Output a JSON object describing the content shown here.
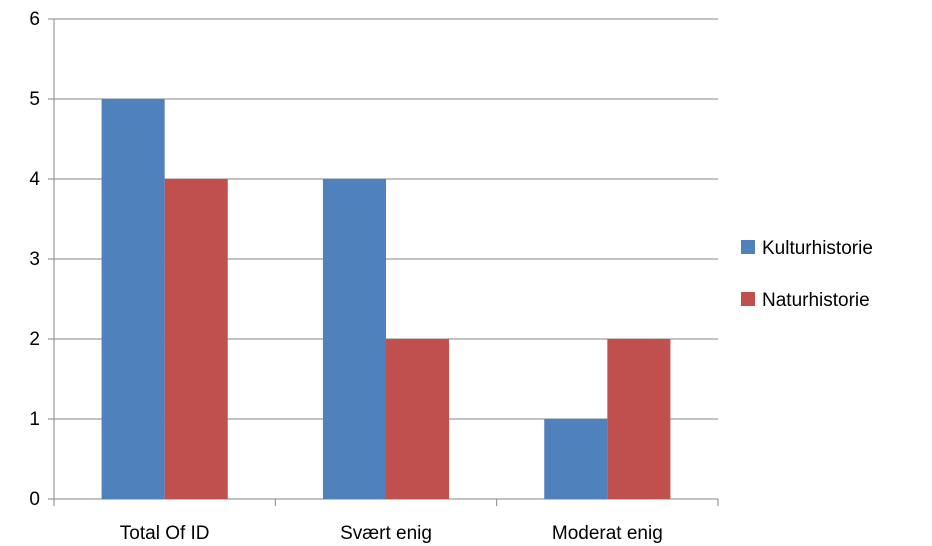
{
  "chart_data": {
    "type": "bar",
    "categories": [
      "Total Of ID",
      "Svært enig",
      "Moderat enig"
    ],
    "series": [
      {
        "name": "Kulturhistorie",
        "values": [
          5,
          4,
          1
        ],
        "color": "#4F81BD"
      },
      {
        "name": "Naturhistorie",
        "values": [
          4,
          2,
          2
        ],
        "color": "#C0504D"
      }
    ],
    "ylim": [
      0,
      6
    ],
    "yticks": [
      0,
      1,
      2,
      3,
      4,
      5,
      6
    ],
    "grid": true,
    "legend_position": "right"
  }
}
